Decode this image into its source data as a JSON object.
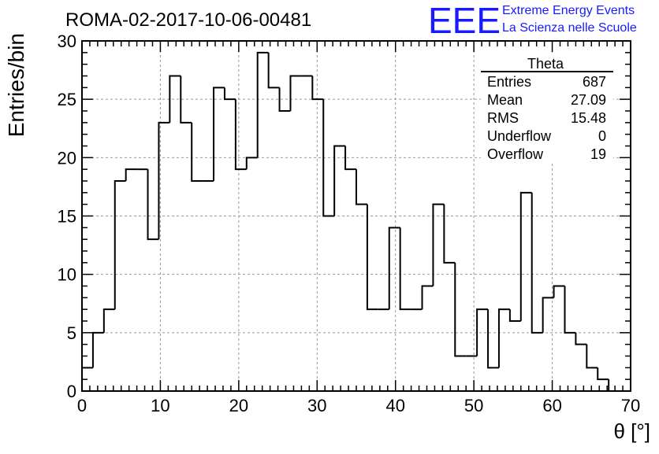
{
  "header": {
    "run_title": "ROMA-02-2017-10-06-00481",
    "logo_text": "EEE",
    "logo_line1": "Extreme Energy Events",
    "logo_line2": "La Scienza nelle Scuole"
  },
  "stats_box": {
    "title": "Theta",
    "rows": [
      {
        "label": "Entries",
        "value": "687"
      },
      {
        "label": "Mean",
        "value": "27.09"
      },
      {
        "label": "RMS",
        "value": "15.48"
      },
      {
        "label": "Underflow",
        "value": "0"
      },
      {
        "label": "Overflow",
        "value": "19"
      }
    ]
  },
  "colors": {
    "line": "#000000",
    "grid": "#999999",
    "logo": "#1a1aff"
  },
  "chart_data": {
    "type": "histogram",
    "xlabel": "θ [°]",
    "ylabel": "Entries/bin",
    "xlim": [
      0,
      70
    ],
    "ylim": [
      0,
      30
    ],
    "grid": true,
    "bin_width": 1.4,
    "bin_start": 0,
    "values": [
      2,
      5,
      7,
      18,
      19,
      19,
      13,
      23,
      27,
      23,
      18,
      18,
      26,
      25,
      19,
      20,
      29,
      26,
      24,
      27,
      27,
      25,
      15,
      21,
      19,
      16,
      7,
      7,
      14,
      7,
      7,
      9,
      16,
      11,
      3,
      3,
      7,
      2,
      7,
      6,
      17,
      5,
      8,
      9,
      5,
      4,
      2,
      1
    ],
    "x_ticks": [
      0,
      10,
      20,
      30,
      40,
      50,
      60,
      70
    ],
    "y_ticks": [
      0,
      5,
      10,
      15,
      20,
      25,
      30
    ]
  }
}
